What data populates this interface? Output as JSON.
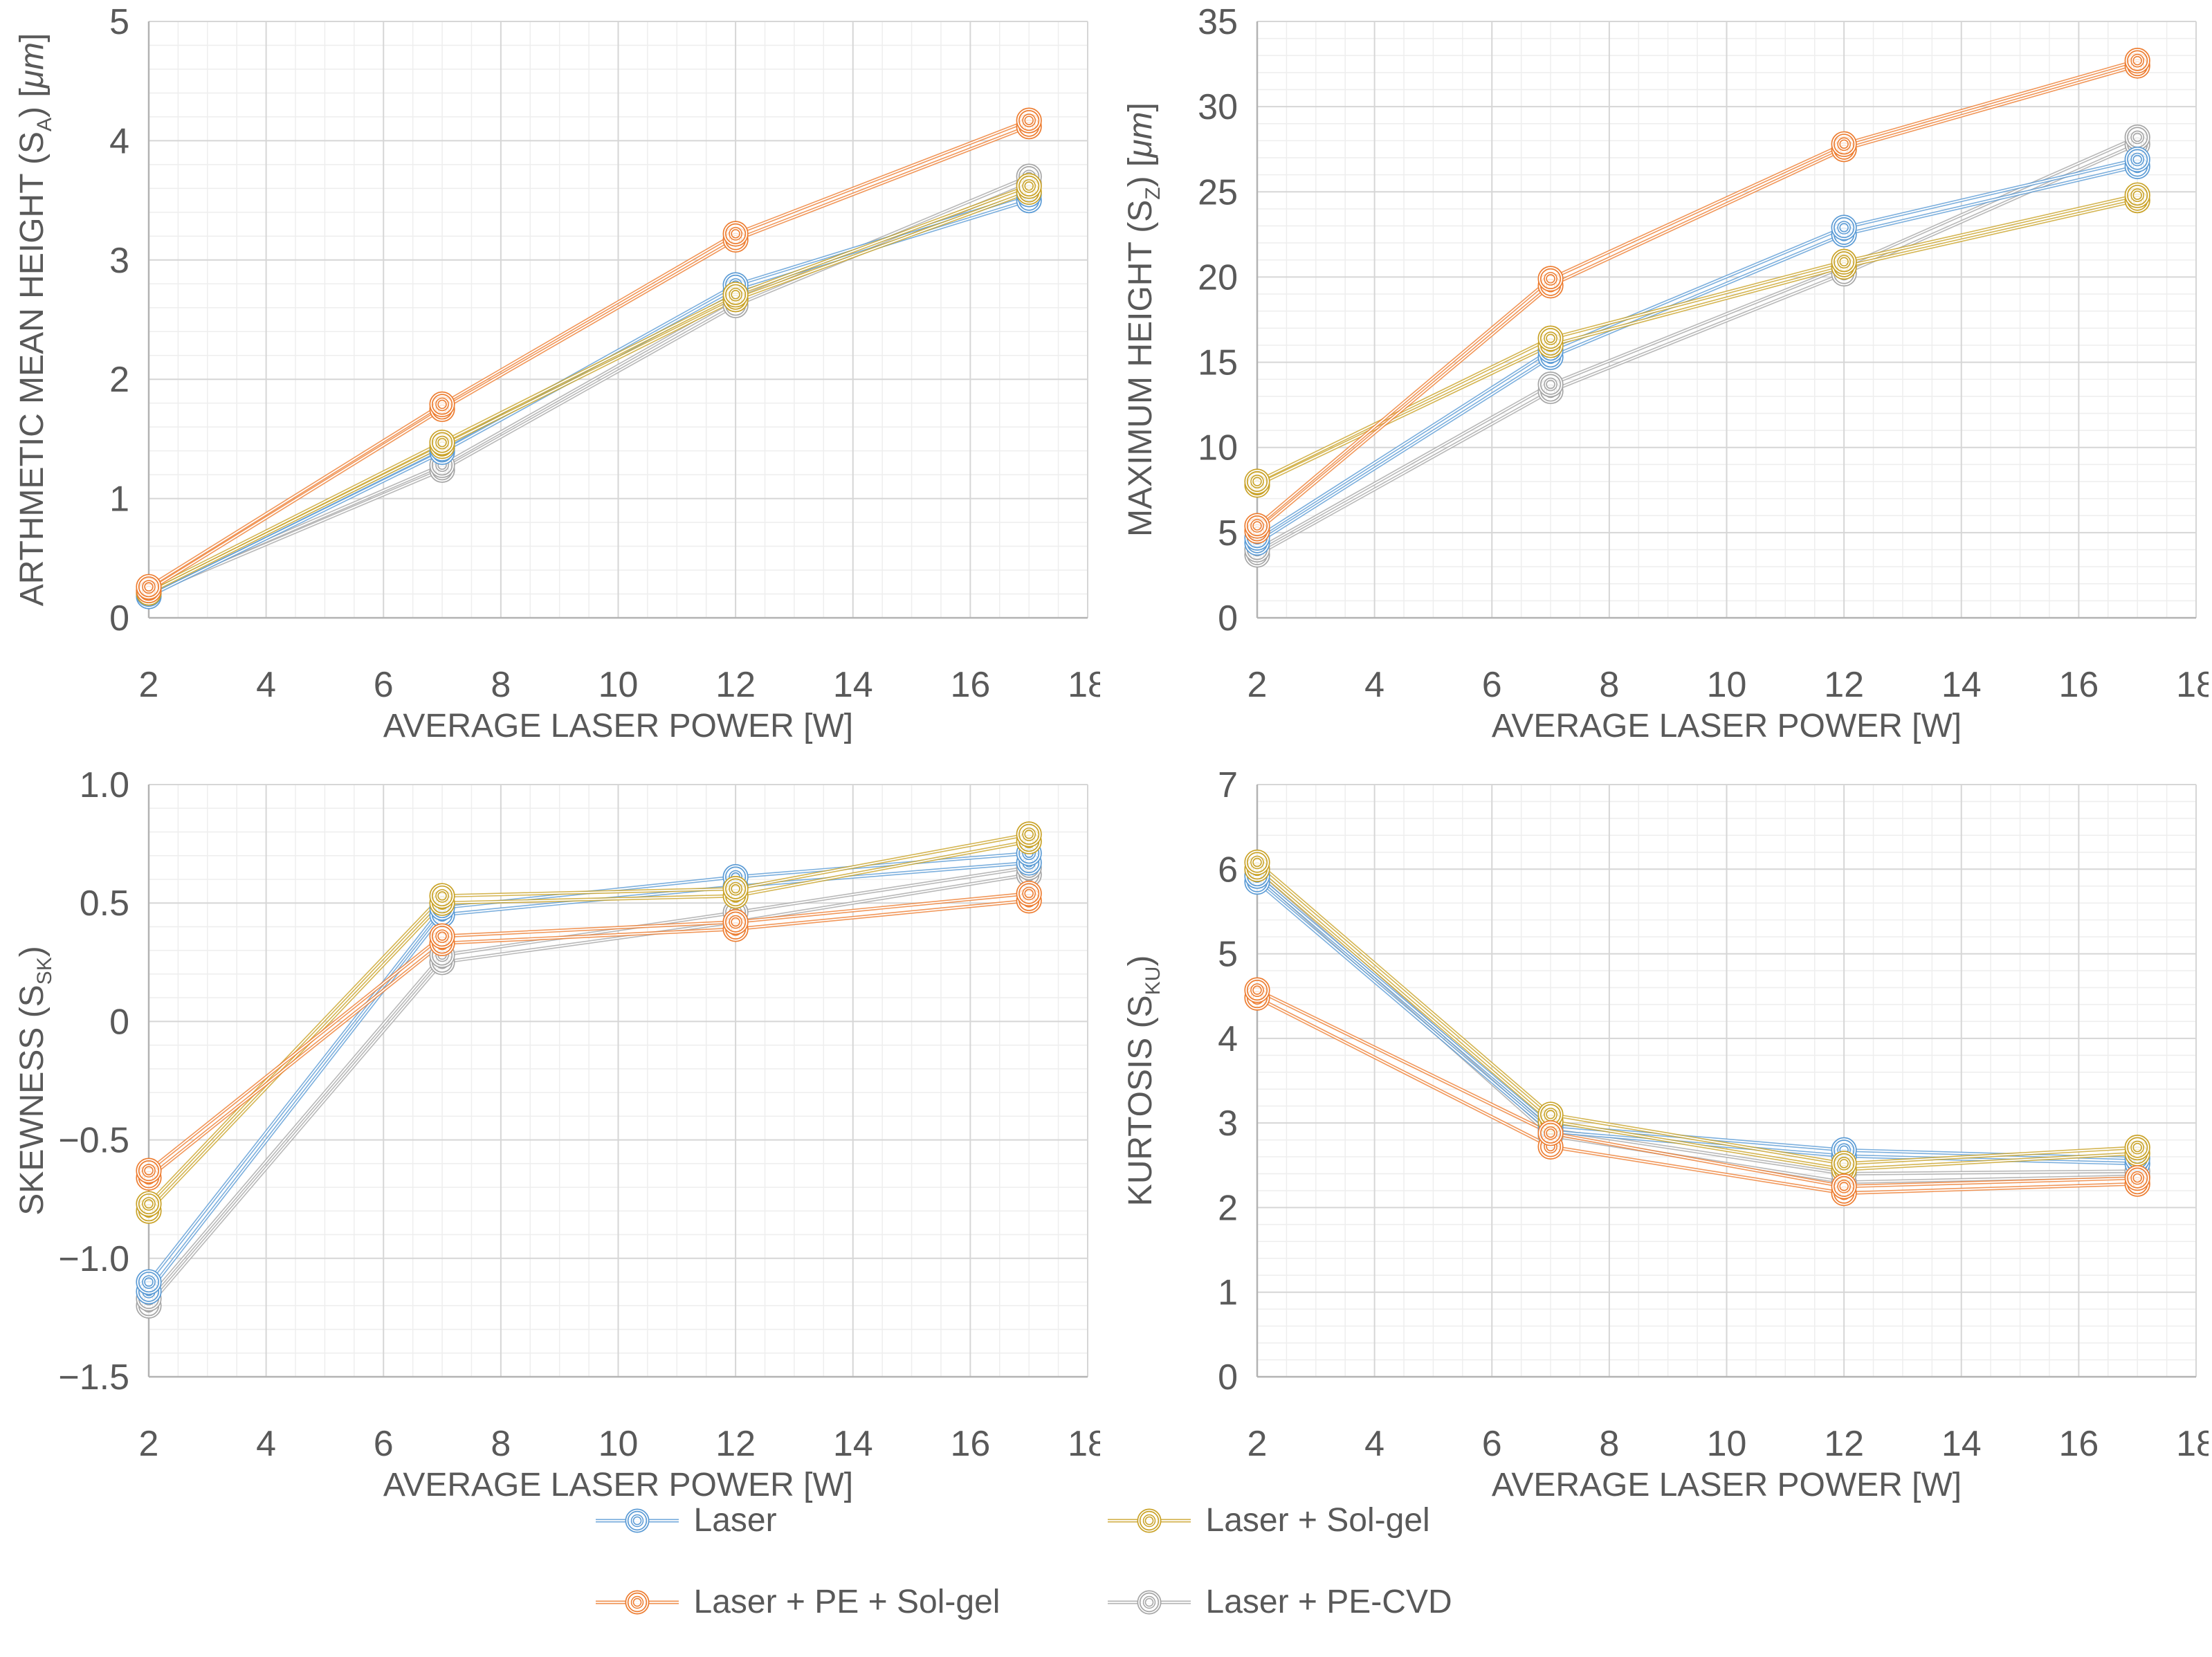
{
  "figure": {
    "background": "#ffffff",
    "tick_color": "#595959",
    "title_color": "#595959",
    "major_grid_color": "#d6d6d6",
    "minor_grid_color": "#eeeeee",
    "axis_line_color": "#b3b3b3"
  },
  "legend": {
    "position": "bottom-center",
    "items": [
      {
        "label": "Laser",
        "color": "#5B9BD5"
      },
      {
        "label": "Laser + Sol-gel",
        "color": "#C9A227"
      },
      {
        "label": "Laser + PE + Sol-gel",
        "color": "#ED7D31"
      },
      {
        "label": "Laser + PE-CVD",
        "color": "#A6A6A6"
      }
    ]
  },
  "chart_data": [
    {
      "type": "line",
      "id": "sa",
      "title": "",
      "xlabel": "AVERAGE LASER POWER [W]",
      "ylabel": "ARTHMETIC MEAN HEIGHT (SA) [μm]",
      "ylabel_parts": [
        {
          "t": "ARTHMETIC MEAN HEIGHT (S"
        },
        {
          "t": "A",
          "sub": true
        },
        {
          "t": ") ["
        },
        {
          "t": "μm",
          "italic": true
        },
        {
          "t": "]"
        }
      ],
      "x_axis": {
        "min": 2,
        "max": 18,
        "major": 2,
        "minor": 0.5,
        "decimals": 0
      },
      "y_axis": {
        "min": 0,
        "max": 5,
        "major": 1,
        "minor": 0.2,
        "decimals": 0
      },
      "x_values": [
        2,
        7,
        12,
        17
      ],
      "grid": true,
      "series": [
        {
          "name": "Laser + PE-CVD",
          "color": "#A6A6A6",
          "replicates": [
            [
              0.22,
              0.2
            ],
            [
              1.28,
              1.24
            ],
            [
              2.67,
              2.62
            ],
            [
              3.7,
              3.64
            ]
          ]
        },
        {
          "name": "Laser",
          "color": "#5B9BD5",
          "replicates": [
            [
              0.2,
              0.18
            ],
            [
              1.42,
              1.39
            ],
            [
              2.79,
              2.74
            ],
            [
              3.55,
              3.5
            ]
          ]
        },
        {
          "name": "Laser + Sol-gel",
          "color": "#C9A227",
          "replicates": [
            [
              0.23,
              0.21
            ],
            [
              1.47,
              1.44
            ],
            [
              2.71,
              2.67
            ],
            [
              3.62,
              3.57
            ]
          ]
        },
        {
          "name": "Laser + PE + Sol-gel",
          "color": "#ED7D31",
          "replicates": [
            [
              0.26,
              0.23
            ],
            [
              1.79,
              1.75
            ],
            [
              3.22,
              3.17
            ],
            [
              4.17,
              4.12
            ]
          ]
        }
      ]
    },
    {
      "type": "line",
      "id": "sz",
      "title": "",
      "xlabel": "AVERAGE LASER POWER [W]",
      "ylabel": "MAXIMUM HEIGHT (SZ) [μm]",
      "ylabel_parts": [
        {
          "t": "MAXIMUM HEIGHT (S"
        },
        {
          "t": "Z",
          "sub": true
        },
        {
          "t": ") ["
        },
        {
          "t": "μm",
          "italic": true
        },
        {
          "t": "]"
        }
      ],
      "x_axis": {
        "min": 2,
        "max": 18,
        "major": 2,
        "minor": 0.5,
        "decimals": 0
      },
      "y_axis": {
        "min": 0,
        "max": 35,
        "major": 5,
        "minor": 1,
        "decimals": 0
      },
      "x_values": [
        2,
        7,
        12,
        17
      ],
      "grid": true,
      "series": [
        {
          "name": "Laser + PE-CVD",
          "color": "#A6A6A6",
          "replicates": [
            [
              4.0,
              3.7
            ],
            [
              13.7,
              13.3
            ],
            [
              20.6,
              20.2
            ],
            [
              28.2,
              27.8
            ]
          ]
        },
        {
          "name": "Laser",
          "color": "#5B9BD5",
          "replicates": [
            [
              4.7,
              4.4
            ],
            [
              15.7,
              15.3
            ],
            [
              22.9,
              22.5
            ],
            [
              26.9,
              26.5
            ]
          ]
        },
        {
          "name": "Laser + Sol-gel",
          "color": "#C9A227",
          "replicates": [
            [
              8.0,
              7.8
            ],
            [
              16.4,
              16.0
            ],
            [
              20.9,
              20.6
            ],
            [
              24.8,
              24.5
            ]
          ]
        },
        {
          "name": "Laser + PE + Sol-gel",
          "color": "#ED7D31",
          "replicates": [
            [
              5.4,
              5.1
            ],
            [
              19.9,
              19.5
            ],
            [
              27.8,
              27.5
            ],
            [
              32.7,
              32.4
            ]
          ]
        }
      ]
    },
    {
      "type": "line",
      "id": "ssk",
      "title": "",
      "xlabel": "AVERAGE LASER POWER [W]",
      "ylabel": "SKEWNESS (SSK)",
      "ylabel_parts": [
        {
          "t": "SKEWNESS (S"
        },
        {
          "t": "SK",
          "sub": true
        },
        {
          "t": ")"
        }
      ],
      "x_axis": {
        "min": 2,
        "max": 18,
        "major": 2,
        "minor": 0.5,
        "decimals": 0
      },
      "y_axis": {
        "min": -1.5,
        "max": 1.0,
        "major": 0.5,
        "minor": 0.1,
        "decimals": 1
      },
      "x_values": [
        2,
        7,
        12,
        17
      ],
      "grid": true,
      "series": [
        {
          "name": "Laser + PE-CVD",
          "color": "#A6A6A6",
          "replicates": [
            [
              -1.17,
              -1.2
            ],
            [
              0.28,
              0.25
            ],
            [
              0.46,
              0.42
            ],
            [
              0.65,
              0.62
            ]
          ]
        },
        {
          "name": "Laser",
          "color": "#5B9BD5",
          "replicates": [
            [
              -1.1,
              -1.14
            ],
            [
              0.48,
              0.45
            ],
            [
              0.61,
              0.57
            ],
            [
              0.71,
              0.67
            ]
          ]
        },
        {
          "name": "Laser + Sol-gel",
          "color": "#C9A227",
          "replicates": [
            [
              -0.77,
              -0.8
            ],
            [
              0.53,
              0.5
            ],
            [
              0.56,
              0.53
            ],
            [
              0.79,
              0.76
            ]
          ]
        },
        {
          "name": "Laser + PE + Sol-gel",
          "color": "#ED7D31",
          "replicates": [
            [
              -0.63,
              -0.66
            ],
            [
              0.36,
              0.33
            ],
            [
              0.42,
              0.39
            ],
            [
              0.54,
              0.51
            ]
          ]
        }
      ]
    },
    {
      "type": "line",
      "id": "sku",
      "title": "",
      "xlabel": "AVERAGE LASER POWER [W]",
      "ylabel": "KURTOSIS (SKU)",
      "ylabel_parts": [
        {
          "t": "KURTOSIS (S"
        },
        {
          "t": "KU",
          "sub": true
        },
        {
          "t": ")"
        }
      ],
      "x_axis": {
        "min": 2,
        "max": 18,
        "major": 2,
        "minor": 0.5,
        "decimals": 0
      },
      "y_axis": {
        "min": 0,
        "max": 7,
        "major": 1,
        "minor": 0.2,
        "decimals": 0
      },
      "x_values": [
        2,
        7,
        12,
        17
      ],
      "grid": true,
      "series": [
        {
          "name": "Laser + PE-CVD",
          "color": "#A6A6A6",
          "replicates": [
            [
              6.0,
              5.93
            ],
            [
              2.92,
              2.85
            ],
            [
              2.4,
              2.3
            ],
            [
              2.43,
              2.37
            ]
          ]
        },
        {
          "name": "Laser",
          "color": "#5B9BD5",
          "replicates": [
            [
              5.92,
              5.85
            ],
            [
              2.97,
              2.9
            ],
            [
              2.68,
              2.61
            ],
            [
              2.58,
              2.52
            ]
          ]
        },
        {
          "name": "Laser + Sol-gel",
          "color": "#C9A227",
          "replicates": [
            [
              6.08,
              6.0
            ],
            [
              3.1,
              3.02
            ],
            [
              2.52,
              2.45
            ],
            [
              2.71,
              2.64
            ]
          ]
        },
        {
          "name": "Laser + PE + Sol-gel",
          "color": "#ED7D31",
          "replicates": [
            [
              4.57,
              4.48
            ],
            [
              2.88,
              2.72
            ],
            [
              2.25,
              2.17
            ],
            [
              2.35,
              2.28
            ]
          ]
        }
      ]
    }
  ]
}
